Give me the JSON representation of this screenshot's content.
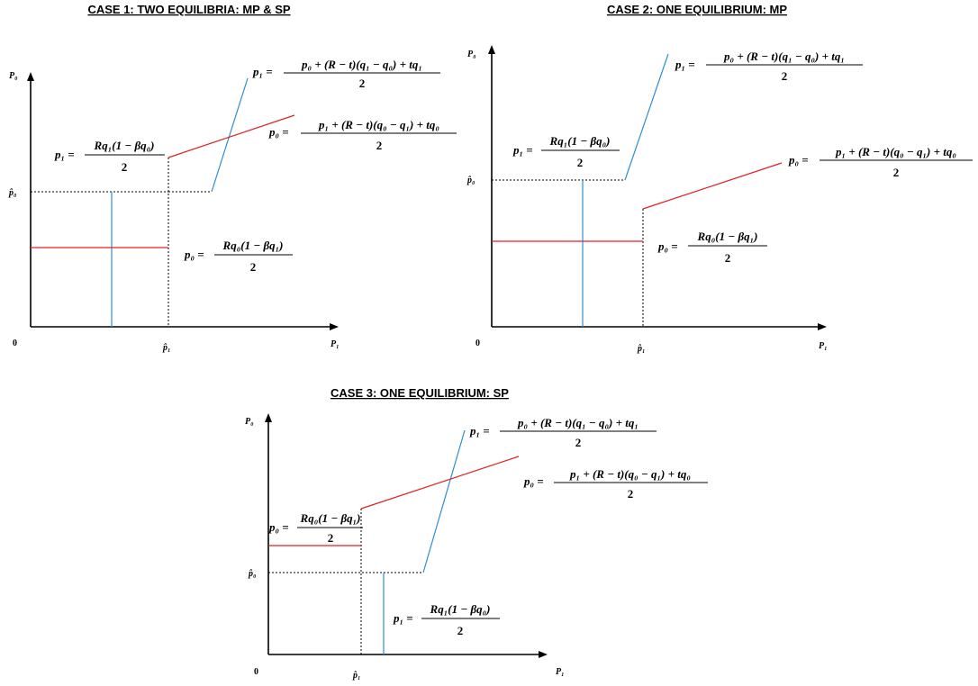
{
  "titles": {
    "case1": "CASE 1: TWO EQUILIBRIA: MP & SP",
    "case2": "CASE 2: ONE EQUILIBRIUM: MP",
    "case3": "CASE 3: ONE EQUILIBRIUM: SP"
  },
  "axes": {
    "y_label": "P₀",
    "x_label": "P₁",
    "origin": "0",
    "p0_hat": "p̂₀",
    "p1_hat": "p̂₁"
  },
  "formulas": {
    "p1_reaction": {
      "lhs": "p₁ =",
      "num": "p₀ + (R − t)(q₁ − q₀) + tq₁",
      "den": "2"
    },
    "p0_reaction": {
      "lhs": "p₀ =",
      "num": "p₁ + (R − t)(q₀ − q₁) + tq₀",
      "den": "2"
    },
    "p1_mono": {
      "lhs": "p₁ =",
      "num": "Rq₁(1 − βq₀)",
      "den": "2"
    },
    "p0_mono": {
      "lhs": "p₀ =",
      "num": "Rq₀(1 − βq₁)",
      "den": "2"
    }
  },
  "colors": {
    "p0_line": "#e02020",
    "p1_line": "#2b8fd6",
    "axes": "#000000"
  }
}
